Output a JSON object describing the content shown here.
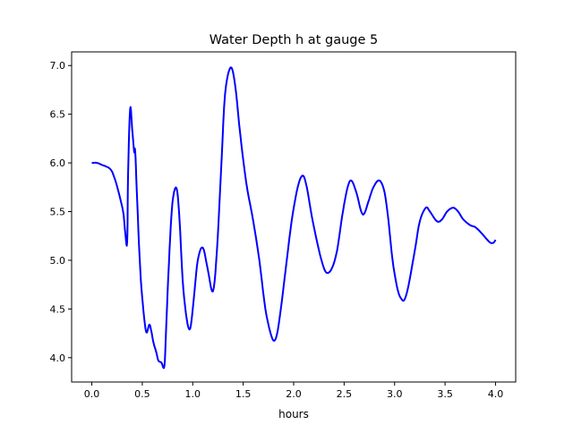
{
  "chart_data": {
    "type": "line",
    "title": "Water Depth h at gauge 5",
    "xlabel": "hours",
    "ylabel": "",
    "xlim": [
      -0.2,
      4.2
    ],
    "ylim": [
      3.75,
      7.14
    ],
    "xticks": [
      0.0,
      0.5,
      1.0,
      1.5,
      2.0,
      2.5,
      3.0,
      3.5,
      4.0
    ],
    "xtick_labels": [
      "0.0",
      "0.5",
      "1.0",
      "1.5",
      "2.0",
      "2.5",
      "3.0",
      "3.5",
      "4.0"
    ],
    "yticks": [
      4.0,
      4.5,
      5.0,
      5.5,
      6.0,
      6.5,
      7.0
    ],
    "ytick_labels": [
      "4.0",
      "4.5",
      "5.0",
      "5.5",
      "6.0",
      "6.5",
      "7.0"
    ],
    "grid": false,
    "series": [
      {
        "name": "h",
        "color": "#0000ff",
        "x": [
          0.0,
          0.05,
          0.1,
          0.18,
          0.22,
          0.26,
          0.31,
          0.33,
          0.35,
          0.36,
          0.38,
          0.4,
          0.42,
          0.43,
          0.45,
          0.48,
          0.51,
          0.54,
          0.57,
          0.59,
          0.61,
          0.64,
          0.66,
          0.69,
          0.72,
          0.74,
          0.77,
          0.8,
          0.84,
          0.87,
          0.9,
          0.94,
          0.975,
          1.01,
          1.05,
          1.1,
          1.15,
          1.2,
          1.24,
          1.28,
          1.32,
          1.375,
          1.42,
          1.47,
          1.53,
          1.6,
          1.66,
          1.72,
          1.78,
          1.82,
          1.86,
          1.92,
          1.98,
          2.04,
          2.09,
          2.13,
          2.18,
          2.24,
          2.29,
          2.33,
          2.38,
          2.43,
          2.48,
          2.53,
          2.57,
          2.62,
          2.67,
          2.7,
          2.74,
          2.79,
          2.85,
          2.9,
          2.94,
          2.98,
          3.03,
          3.07,
          3.1,
          3.14,
          3.2,
          3.25,
          3.31,
          3.35,
          3.42,
          3.47,
          3.52,
          3.58,
          3.63,
          3.68,
          3.75,
          3.8,
          3.86,
          3.91,
          3.95,
          3.98,
          4.0
        ],
        "y": [
          6.0,
          6.0,
          5.98,
          5.94,
          5.86,
          5.72,
          5.5,
          5.3,
          5.18,
          5.9,
          6.56,
          6.35,
          6.11,
          6.12,
          5.6,
          4.9,
          4.5,
          4.26,
          4.34,
          4.27,
          4.16,
          4.05,
          3.97,
          3.95,
          3.92,
          4.4,
          5.1,
          5.6,
          5.74,
          5.4,
          4.8,
          4.4,
          4.3,
          4.6,
          5.0,
          5.13,
          4.9,
          4.68,
          5.1,
          5.9,
          6.7,
          6.98,
          6.8,
          6.3,
          5.8,
          5.4,
          5.0,
          4.5,
          4.22,
          4.19,
          4.4,
          4.9,
          5.4,
          5.75,
          5.87,
          5.75,
          5.45,
          5.15,
          4.95,
          4.87,
          4.92,
          5.1,
          5.45,
          5.73,
          5.82,
          5.7,
          5.5,
          5.48,
          5.6,
          5.75,
          5.82,
          5.7,
          5.4,
          5.0,
          4.7,
          4.6,
          4.6,
          4.75,
          5.1,
          5.4,
          5.54,
          5.5,
          5.4,
          5.42,
          5.5,
          5.54,
          5.5,
          5.42,
          5.36,
          5.34,
          5.28,
          5.22,
          5.18,
          5.18,
          5.21
        ]
      }
    ]
  }
}
